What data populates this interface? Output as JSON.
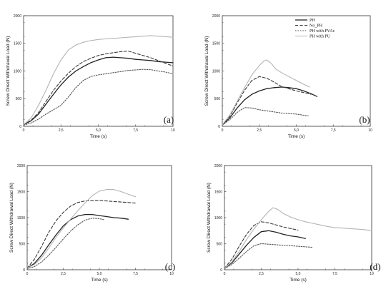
{
  "chart_data": [
    {
      "type": "line",
      "panel_label": "(a)",
      "xlabel": "Time (s)",
      "ylabel": "Screw Direct  Withdrawal Load (N)",
      "xlim": [
        0,
        10
      ],
      "ylim": [
        0,
        2000
      ],
      "xticks": [
        "0",
        "2,5",
        "5,0",
        "7,5",
        "10"
      ],
      "yticks": [
        "0",
        "500",
        "1000",
        "1500",
        "2000"
      ],
      "series": [
        {
          "style": "solid-dark",
          "x": [
            0,
            0.5,
            1,
            1.5,
            2,
            2.5,
            3,
            3.5,
            4,
            4.5,
            5,
            5.5,
            6,
            6.5,
            7,
            7.5,
            8,
            8.5,
            9,
            9.5,
            10
          ],
          "y": [
            30,
            100,
            220,
            400,
            580,
            750,
            890,
            1000,
            1080,
            1150,
            1200,
            1240,
            1250,
            1240,
            1230,
            1210,
            1200,
            1190,
            1170,
            1160,
            1150
          ]
        },
        {
          "style": "dashed",
          "x": [
            0,
            0.5,
            1,
            1.5,
            2,
            2.5,
            3,
            3.5,
            4,
            4.5,
            5,
            5.5,
            6,
            6.5,
            7,
            7.5,
            8,
            8.5,
            9,
            9.5,
            10
          ],
          "y": [
            30,
            110,
            250,
            450,
            650,
            820,
            960,
            1080,
            1170,
            1230,
            1280,
            1310,
            1330,
            1350,
            1360,
            1320,
            1280,
            1240,
            1190,
            1140,
            1090
          ]
        },
        {
          "style": "dotted",
          "x": [
            0,
            0.5,
            1,
            1.5,
            2,
            2.5,
            3,
            3.5,
            4,
            4.5,
            5,
            5.5,
            6,
            6.5,
            7,
            7.5,
            8,
            8.5,
            9,
            9.5,
            10
          ],
          "y": [
            20,
            60,
            130,
            220,
            300,
            380,
            530,
            700,
            830,
            900,
            930,
            950,
            970,
            990,
            1010,
            1020,
            1030,
            1025,
            1000,
            980,
            950
          ]
        },
        {
          "style": "solid-light",
          "x": [
            0,
            0.5,
            1,
            1.5,
            2,
            2.5,
            3,
            3.5,
            4,
            4.5,
            5,
            5.5,
            6,
            6.5,
            7,
            7.5,
            8,
            8.5,
            9,
            9.5,
            10
          ],
          "y": [
            30,
            150,
            380,
            650,
            950,
            1200,
            1380,
            1470,
            1520,
            1550,
            1570,
            1580,
            1590,
            1600,
            1610,
            1620,
            1630,
            1640,
            1630,
            1620,
            1610
          ]
        }
      ]
    },
    {
      "type": "line",
      "panel_label": "(b)",
      "xlabel": "Time (s)",
      "ylabel": "Screw Direct  Withdrawal Load (N)",
      "xlim": [
        0,
        10
      ],
      "ylim": [
        0,
        2000
      ],
      "xticks": [
        "0",
        "2,5",
        "5,0",
        "7,5",
        "10"
      ],
      "yticks": [
        "0",
        "500",
        "1000",
        "1500",
        "2000"
      ],
      "legend": [
        "PH",
        "No_PH",
        "PH with PVAc",
        "PH with PU"
      ],
      "series": [
        {
          "style": "solid-dark",
          "x": [
            0,
            0.5,
            1,
            1.5,
            2,
            2.5,
            3,
            3.5,
            4,
            4.5,
            5,
            5.5,
            6,
            6.4
          ],
          "y": [
            30,
            150,
            330,
            480,
            580,
            640,
            680,
            700,
            710,
            700,
            680,
            640,
            590,
            540
          ]
        },
        {
          "style": "dashed",
          "x": [
            0,
            0.5,
            1,
            1.5,
            2,
            2.5,
            3,
            3.5,
            4,
            4.5,
            5,
            5.5,
            6
          ],
          "y": [
            30,
            180,
            420,
            650,
            830,
            900,
            870,
            800,
            720,
            680,
            640,
            610,
            580
          ]
        },
        {
          "style": "dotted",
          "x": [
            0,
            0.5,
            1,
            1.5,
            2,
            2.5,
            3,
            3.5,
            4,
            4.5,
            5,
            5.5,
            5.8
          ],
          "y": [
            20,
            120,
            250,
            340,
            330,
            300,
            280,
            260,
            240,
            230,
            220,
            200,
            190
          ]
        },
        {
          "style": "solid-light",
          "x": [
            0,
            0.5,
            1,
            1.5,
            2,
            2.5,
            2.8,
            3,
            3.3,
            3.6,
            4,
            4.5,
            5,
            5.5,
            5.9
          ],
          "y": [
            30,
            200,
            450,
            700,
            930,
            1100,
            1180,
            1200,
            1140,
            1040,
            970,
            900,
            830,
            760,
            710
          ]
        }
      ]
    },
    {
      "type": "line",
      "panel_label": "(c)",
      "xlabel": "Time (s)",
      "ylabel": "Screw Direct  Withdrawal Load (N)",
      "xlim": [
        0,
        10
      ],
      "ylim": [
        0,
        2000
      ],
      "xticks": [
        "0",
        "2,5",
        "5,0",
        "7,5",
        "10"
      ],
      "yticks": [
        "0",
        "500",
        "1000",
        "1500",
        "2000"
      ],
      "series": [
        {
          "style": "solid-dark",
          "x": [
            0,
            0.5,
            1,
            1.5,
            2,
            2.5,
            3,
            3.5,
            4,
            4.5,
            5,
            5.5,
            6,
            6.5,
            7
          ],
          "y": [
            30,
            120,
            280,
            480,
            670,
            840,
            960,
            1030,
            1060,
            1060,
            1040,
            1020,
            1000,
            990,
            970
          ]
        },
        {
          "style": "dashed",
          "x": [
            0,
            0.5,
            1,
            1.5,
            2,
            2.5,
            3,
            3.5,
            4,
            4.5,
            5,
            5.5,
            6,
            6.5,
            7,
            7.5
          ],
          "y": [
            30,
            200,
            450,
            720,
            940,
            1100,
            1220,
            1290,
            1320,
            1330,
            1330,
            1320,
            1310,
            1300,
            1290,
            1280
          ]
        },
        {
          "style": "dotted",
          "x": [
            0,
            0.5,
            1,
            1.5,
            2,
            2.5,
            3,
            3.5,
            4,
            4.5,
            5,
            5.3
          ],
          "y": [
            20,
            60,
            150,
            280,
            430,
            590,
            740,
            860,
            950,
            990,
            980,
            960
          ]
        },
        {
          "style": "solid-light",
          "x": [
            0,
            0.5,
            1,
            1.5,
            2,
            2.5,
            3,
            3.5,
            4,
            4.5,
            5,
            5.5,
            6,
            6.5,
            7,
            7.5
          ],
          "y": [
            30,
            100,
            230,
            420,
            620,
            800,
            970,
            1130,
            1280,
            1420,
            1510,
            1540,
            1540,
            1500,
            1450,
            1400
          ]
        }
      ]
    },
    {
      "type": "line",
      "panel_label": "(d)",
      "xlabel": "Time (s)",
      "ylabel": "Screw Direct  Withdrawal Load (N)",
      "xlim": [
        0,
        10
      ],
      "ylim": [
        0,
        2000
      ],
      "xticks": [
        "0",
        "2,5",
        "5,0",
        "7,5",
        "10"
      ],
      "yticks": [
        "0",
        "500",
        "1000",
        "1500",
        "2000"
      ],
      "series": [
        {
          "style": "solid-dark",
          "x": [
            0,
            0.5,
            1,
            1.5,
            2,
            2.5,
            3,
            3.5,
            4,
            4.5,
            5,
            5.5
          ],
          "y": [
            30,
            130,
            300,
            470,
            620,
            730,
            750,
            720,
            680,
            650,
            630,
            600
          ]
        },
        {
          "style": "dashed",
          "x": [
            0,
            0.5,
            1,
            1.5,
            2,
            2.5,
            3,
            3.5,
            4,
            4.5,
            5
          ],
          "y": [
            30,
            200,
            450,
            680,
            850,
            920,
            900,
            860,
            820,
            790,
            760
          ]
        },
        {
          "style": "dotted",
          "x": [
            0,
            0.5,
            1,
            1.5,
            2,
            2.5,
            3,
            3.5,
            4,
            4.5,
            5,
            5.5,
            6
          ],
          "y": [
            20,
            100,
            220,
            350,
            460,
            500,
            490,
            480,
            470,
            460,
            450,
            440,
            430
          ]
        },
        {
          "style": "solid-light",
          "x": [
            0,
            0.5,
            1,
            1.5,
            2,
            2.5,
            3,
            3.3,
            3.6,
            4,
            4.5,
            5,
            5.5,
            6,
            6.5,
            7,
            7.5,
            8,
            8.5,
            9,
            9.5,
            10
          ],
          "y": [
            30,
            150,
            350,
            580,
            780,
            960,
            1120,
            1190,
            1160,
            1080,
            1010,
            960,
            920,
            890,
            860,
            830,
            810,
            800,
            790,
            780,
            770,
            750
          ]
        }
      ]
    }
  ],
  "colors": {
    "solid-dark": "#222222",
    "dashed": "#3a3a3a",
    "dotted": "#555555",
    "solid-light": "#b4b4b4"
  }
}
